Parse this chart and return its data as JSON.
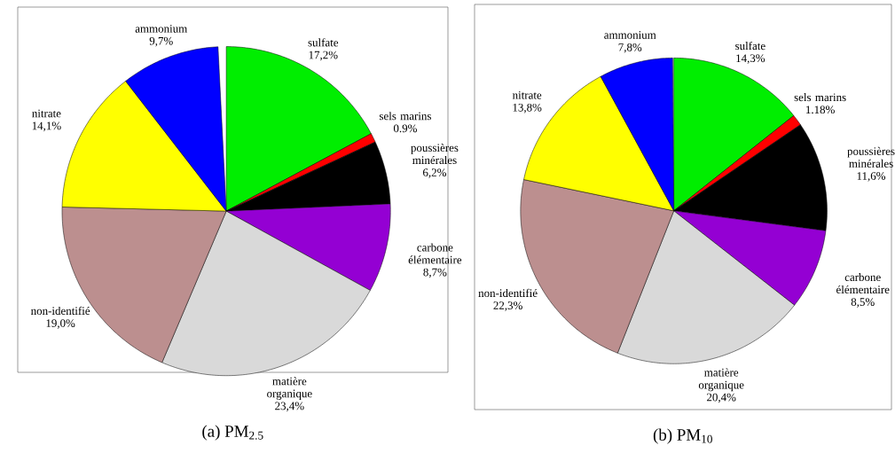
{
  "chart_data": [
    {
      "type": "pie",
      "title": "(a) PM$_{2.5}$",
      "categories": [
        "sulfate",
        "sels marins",
        "poussières minérales",
        "carbone élémentaire",
        "matière organique",
        "non-identifié",
        "nitrate",
        "ammonium"
      ],
      "values": [
        17.2,
        0.9,
        6.2,
        8.7,
        23.4,
        19.0,
        14.1,
        9.7
      ],
      "value_labels": [
        "17,2%",
        "0.9%",
        "6,2%",
        "8,7%",
        "23,4%",
        "19,0%",
        "14,1%",
        "9,7%"
      ],
      "colors": [
        "#00ee00",
        "#ff0000",
        "#000000",
        "#9400d3",
        "#d9d9d9",
        "#bc8f8f",
        "#ffff00",
        "#0000ff"
      ]
    },
    {
      "type": "pie",
      "title": "(b) PM$_{10}$",
      "categories": [
        "sulfate",
        "sels marins",
        "poussières minérales",
        "carbone élémentaire",
        "matière organique",
        "non-identifié",
        "nitrate",
        "ammonium"
      ],
      "values": [
        14.3,
        1.18,
        11.6,
        8.5,
        20.4,
        22.3,
        13.8,
        7.8
      ],
      "value_labels": [
        "14,3%",
        "1.18%",
        "11,6%",
        "8,5%",
        "20,4%",
        "22,3%",
        "13,8%",
        "7,8%"
      ],
      "colors": [
        "#00ee00",
        "#ff0000",
        "#000000",
        "#9400d3",
        "#d9d9d9",
        "#bc8f8f",
        "#ffff00",
        "#0000ff"
      ]
    }
  ]
}
